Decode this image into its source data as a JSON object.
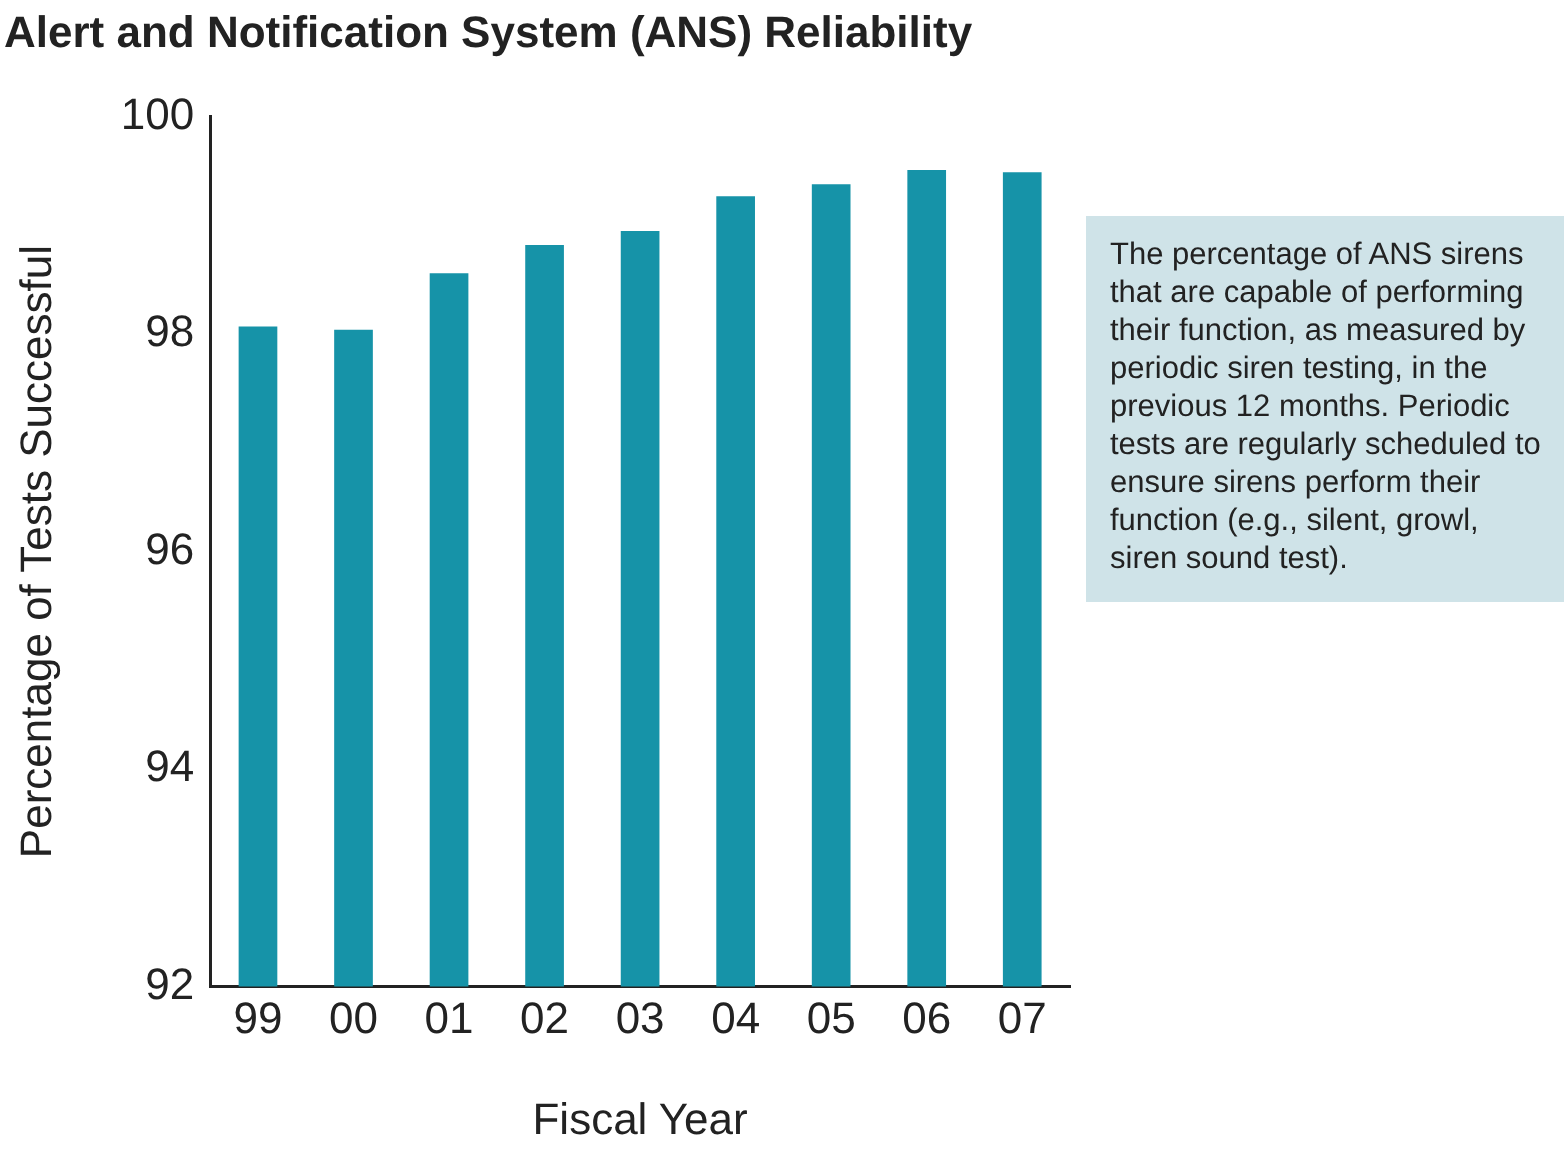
{
  "chart_data": {
    "type": "bar",
    "title": "Alert and Notification System (ANS) Reliability",
    "xlabel": "Fiscal Year",
    "ylabel": "Percentage of Tests Successful",
    "categories": [
      "99",
      "00",
      "01",
      "02",
      "03",
      "04",
      "05",
      "06",
      "07"
    ],
    "values": [
      98.07,
      98.04,
      98.56,
      98.82,
      98.95,
      99.27,
      99.38,
      99.51,
      99.49
    ],
    "color": "#1693a8",
    "ylim": [
      92,
      100
    ],
    "yticks": [
      92,
      94,
      96,
      98,
      100
    ],
    "grid": false,
    "legend": false,
    "annotations": [
      "The percentage of ANS sirens that are capable of performing their function, as measured by periodic siren testing, in the previous 12 months. Periodic tests are regularly scheduled to ensure sirens perform their function (e.g., silent, growl, siren sound test)."
    ]
  }
}
